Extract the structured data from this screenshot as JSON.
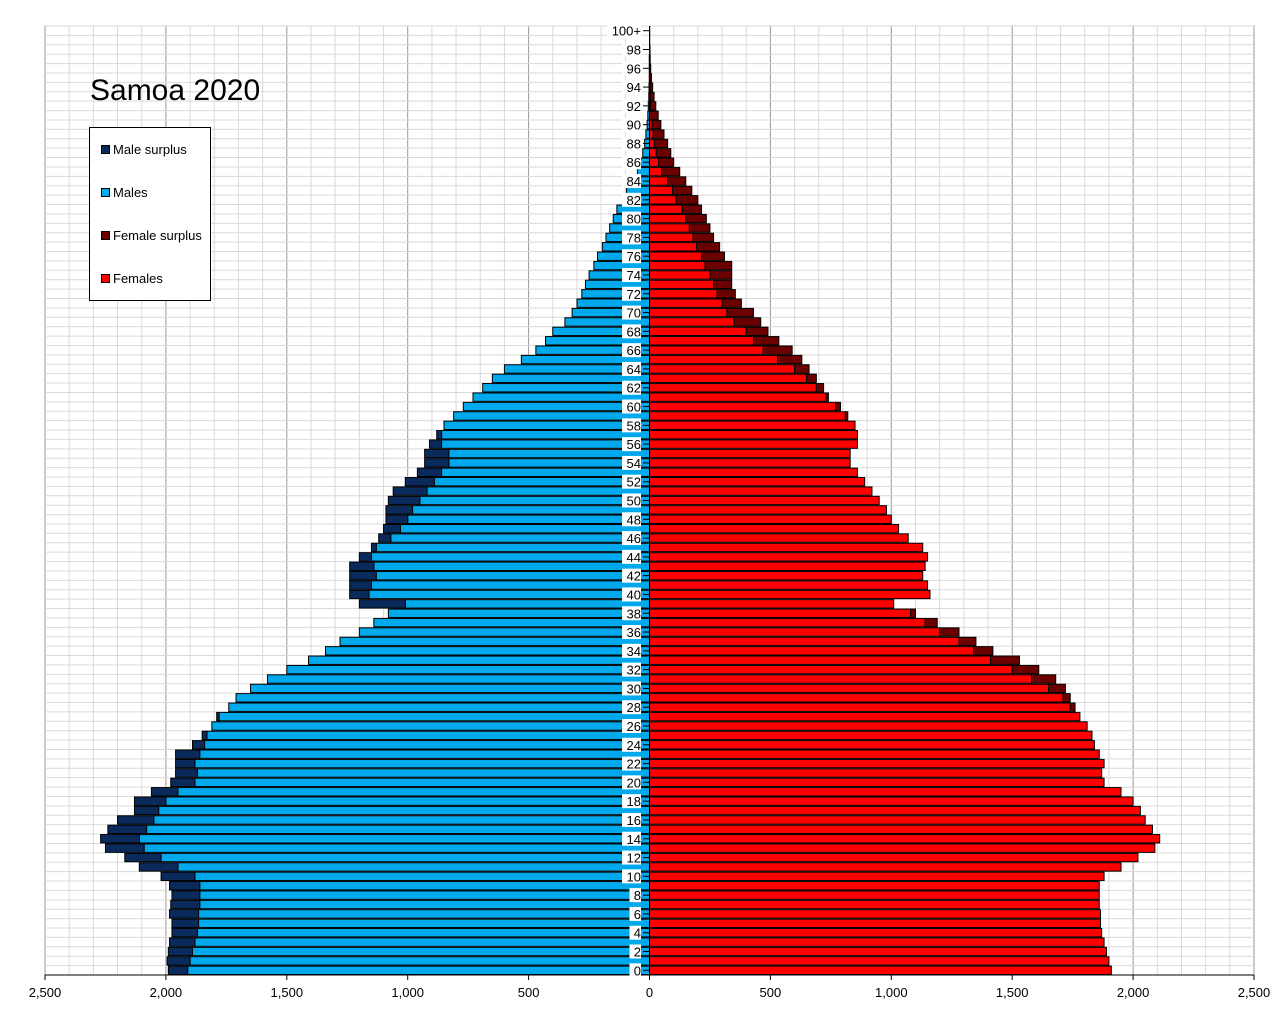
{
  "chart_data": {
    "type": "bar",
    "title": "Samoa 2020",
    "legend": {
      "placement": "top-left",
      "entries": [
        {
          "label": "Male surplus",
          "color": "#0b2a5c"
        },
        {
          "label": "Males",
          "color": "#00a8ec"
        },
        {
          "label": "Female surplus",
          "color": "#6a0000"
        },
        {
          "label": "Females",
          "color": "#ff0000"
        }
      ]
    },
    "x_ticks": [
      {
        "value": -2500,
        "label": "2,500"
      },
      {
        "value": -2000,
        "label": "2,000"
      },
      {
        "value": -1500,
        "label": "1,500"
      },
      {
        "value": -1000,
        "label": "1,000"
      },
      {
        "value": -500,
        "label": "500"
      },
      {
        "value": 0,
        "label": "0"
      },
      {
        "value": 500,
        "label": "500"
      },
      {
        "value": 1000,
        "label": "1,000"
      },
      {
        "value": 1500,
        "label": "1,500"
      },
      {
        "value": 2000,
        "label": "2,000"
      },
      {
        "value": 2500,
        "label": "2,500"
      }
    ],
    "xlim": [
      -2500,
      2500
    ],
    "grid": true,
    "age_labels": [
      "100+",
      "98",
      "96",
      "94",
      "92",
      "90",
      "88",
      "86",
      "84",
      "82",
      "80",
      "78",
      "76",
      "74",
      "72",
      "70",
      "68",
      "66",
      "64",
      "62",
      "60",
      "58",
      "56",
      "54",
      "52",
      "50",
      "48",
      "46",
      "44",
      "42",
      "40",
      "38",
      "36",
      "34",
      "32",
      "30",
      "28",
      "26",
      "24",
      "22",
      "20",
      "18",
      "16",
      "14",
      "12",
      "10",
      "8",
      "6",
      "4",
      "2",
      "0"
    ],
    "ages": [
      "0",
      "1",
      "2",
      "3",
      "4",
      "5",
      "6",
      "7",
      "8",
      "9",
      "10",
      "11",
      "12",
      "13",
      "14",
      "15",
      "16",
      "17",
      "18",
      "19",
      "20",
      "21",
      "22",
      "23",
      "24",
      "25",
      "26",
      "27",
      "28",
      "29",
      "30",
      "31",
      "32",
      "33",
      "34",
      "35",
      "36",
      "37",
      "38",
      "39",
      "40",
      "41",
      "42",
      "43",
      "44",
      "45",
      "46",
      "47",
      "48",
      "49",
      "50",
      "51",
      "52",
      "53",
      "54",
      "55",
      "56",
      "57",
      "58",
      "59",
      "60",
      "61",
      "62",
      "63",
      "64",
      "65",
      "66",
      "67",
      "68",
      "69",
      "70",
      "71",
      "72",
      "73",
      "74",
      "75",
      "76",
      "77",
      "78",
      "79",
      "80",
      "81",
      "82",
      "83",
      "84",
      "85",
      "86",
      "87",
      "88",
      "89",
      "90",
      "91",
      "92",
      "93",
      "94",
      "95",
      "96",
      "97",
      "98",
      "99",
      "100+"
    ],
    "series": [
      {
        "name": "Males",
        "values": [
          1990,
          1995,
          1990,
          1985,
          1975,
          1975,
          1985,
          1980,
          1975,
          1985,
          2020,
          2110,
          2170,
          2250,
          2270,
          2240,
          2200,
          2130,
          2130,
          2060,
          1980,
          1960,
          1960,
          1960,
          1890,
          1850,
          1810,
          1790,
          1740,
          1710,
          1650,
          1580,
          1500,
          1410,
          1340,
          1280,
          1200,
          1140,
          1080,
          1200,
          1240,
          1240,
          1240,
          1240,
          1200,
          1150,
          1120,
          1100,
          1090,
          1090,
          1080,
          1060,
          1010,
          960,
          930,
          930,
          910,
          880,
          850,
          810,
          770,
          730,
          690,
          650,
          600,
          530,
          470,
          430,
          400,
          350,
          320,
          300,
          280,
          265,
          250,
          230,
          215,
          195,
          180,
          165,
          150,
          135,
          110,
          95,
          75,
          50,
          38,
          28,
          20,
          15,
          10,
          7,
          5,
          3,
          2,
          1,
          1,
          1,
          0,
          0,
          0
        ]
      },
      {
        "name": "Females",
        "values": [
          1910,
          1900,
          1890,
          1880,
          1870,
          1865,
          1865,
          1860,
          1860,
          1860,
          1880,
          1950,
          2020,
          2090,
          2110,
          2080,
          2050,
          2030,
          2000,
          1950,
          1880,
          1870,
          1880,
          1860,
          1840,
          1830,
          1810,
          1780,
          1760,
          1740,
          1720,
          1680,
          1610,
          1530,
          1420,
          1350,
          1280,
          1190,
          1100,
          1010,
          1160,
          1150,
          1130,
          1140,
          1150,
          1130,
          1070,
          1030,
          1000,
          980,
          950,
          920,
          890,
          860,
          830,
          830,
          860,
          860,
          850,
          820,
          790,
          740,
          720,
          690,
          660,
          630,
          590,
          535,
          490,
          460,
          430,
          380,
          355,
          340,
          340,
          340,
          310,
          290,
          265,
          250,
          235,
          215,
          200,
          175,
          150,
          125,
          100,
          88,
          75,
          60,
          47,
          36,
          26,
          19,
          13,
          8,
          5,
          3,
          2,
          1,
          1
        ]
      }
    ]
  }
}
